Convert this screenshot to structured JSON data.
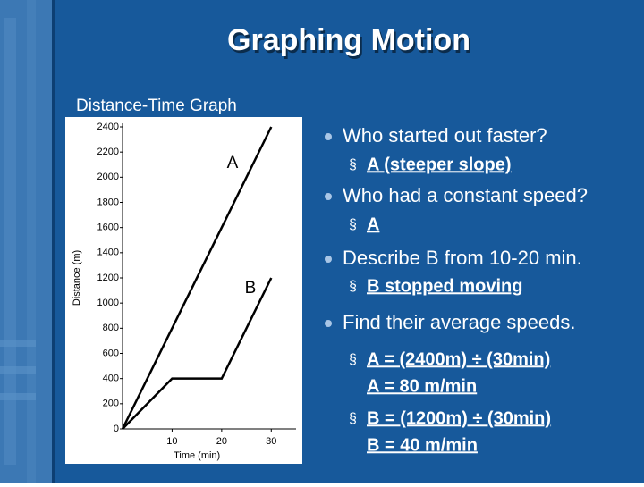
{
  "slide": {
    "title": "Graphing Motion",
    "subtitle": "Distance-Time Graph",
    "bullets": [
      {
        "text": "Who started out faster?",
        "subs": [
          [
            "A (steeper slope)"
          ]
        ]
      },
      {
        "text": "Who had a constant speed?",
        "subs": [
          [
            "A"
          ]
        ]
      },
      {
        "text": "Describe B from 10-20 min.",
        "subs": [
          [
            "B stopped moving"
          ]
        ]
      },
      {
        "text": "Find their average speeds.",
        "subs": [
          [
            "A = (2400m) ÷ (30min)",
            "A = 80 m/min"
          ],
          [
            "B = (1200m) ÷ (30min)",
            "B = 40 m/min"
          ]
        ]
      }
    ]
  },
  "chart_data": {
    "type": "line",
    "x_label": "Time (min)",
    "y_label": "Distance (m)",
    "xlim": [
      0,
      35
    ],
    "ylim": [
      0,
      2400
    ],
    "xticks": [
      10,
      20,
      30
    ],
    "yticks": [
      0,
      200,
      400,
      600,
      800,
      1000,
      1200,
      1400,
      1600,
      1800,
      2000,
      2200,
      2400
    ],
    "series": [
      {
        "name": "A",
        "color": "#000000",
        "x": [
          0,
          30
        ],
        "values": [
          0,
          2400
        ]
      },
      {
        "name": "B",
        "color": "#000000",
        "x": [
          0,
          10,
          20,
          30
        ],
        "values": [
          0,
          400,
          400,
          1200
        ]
      }
    ]
  }
}
